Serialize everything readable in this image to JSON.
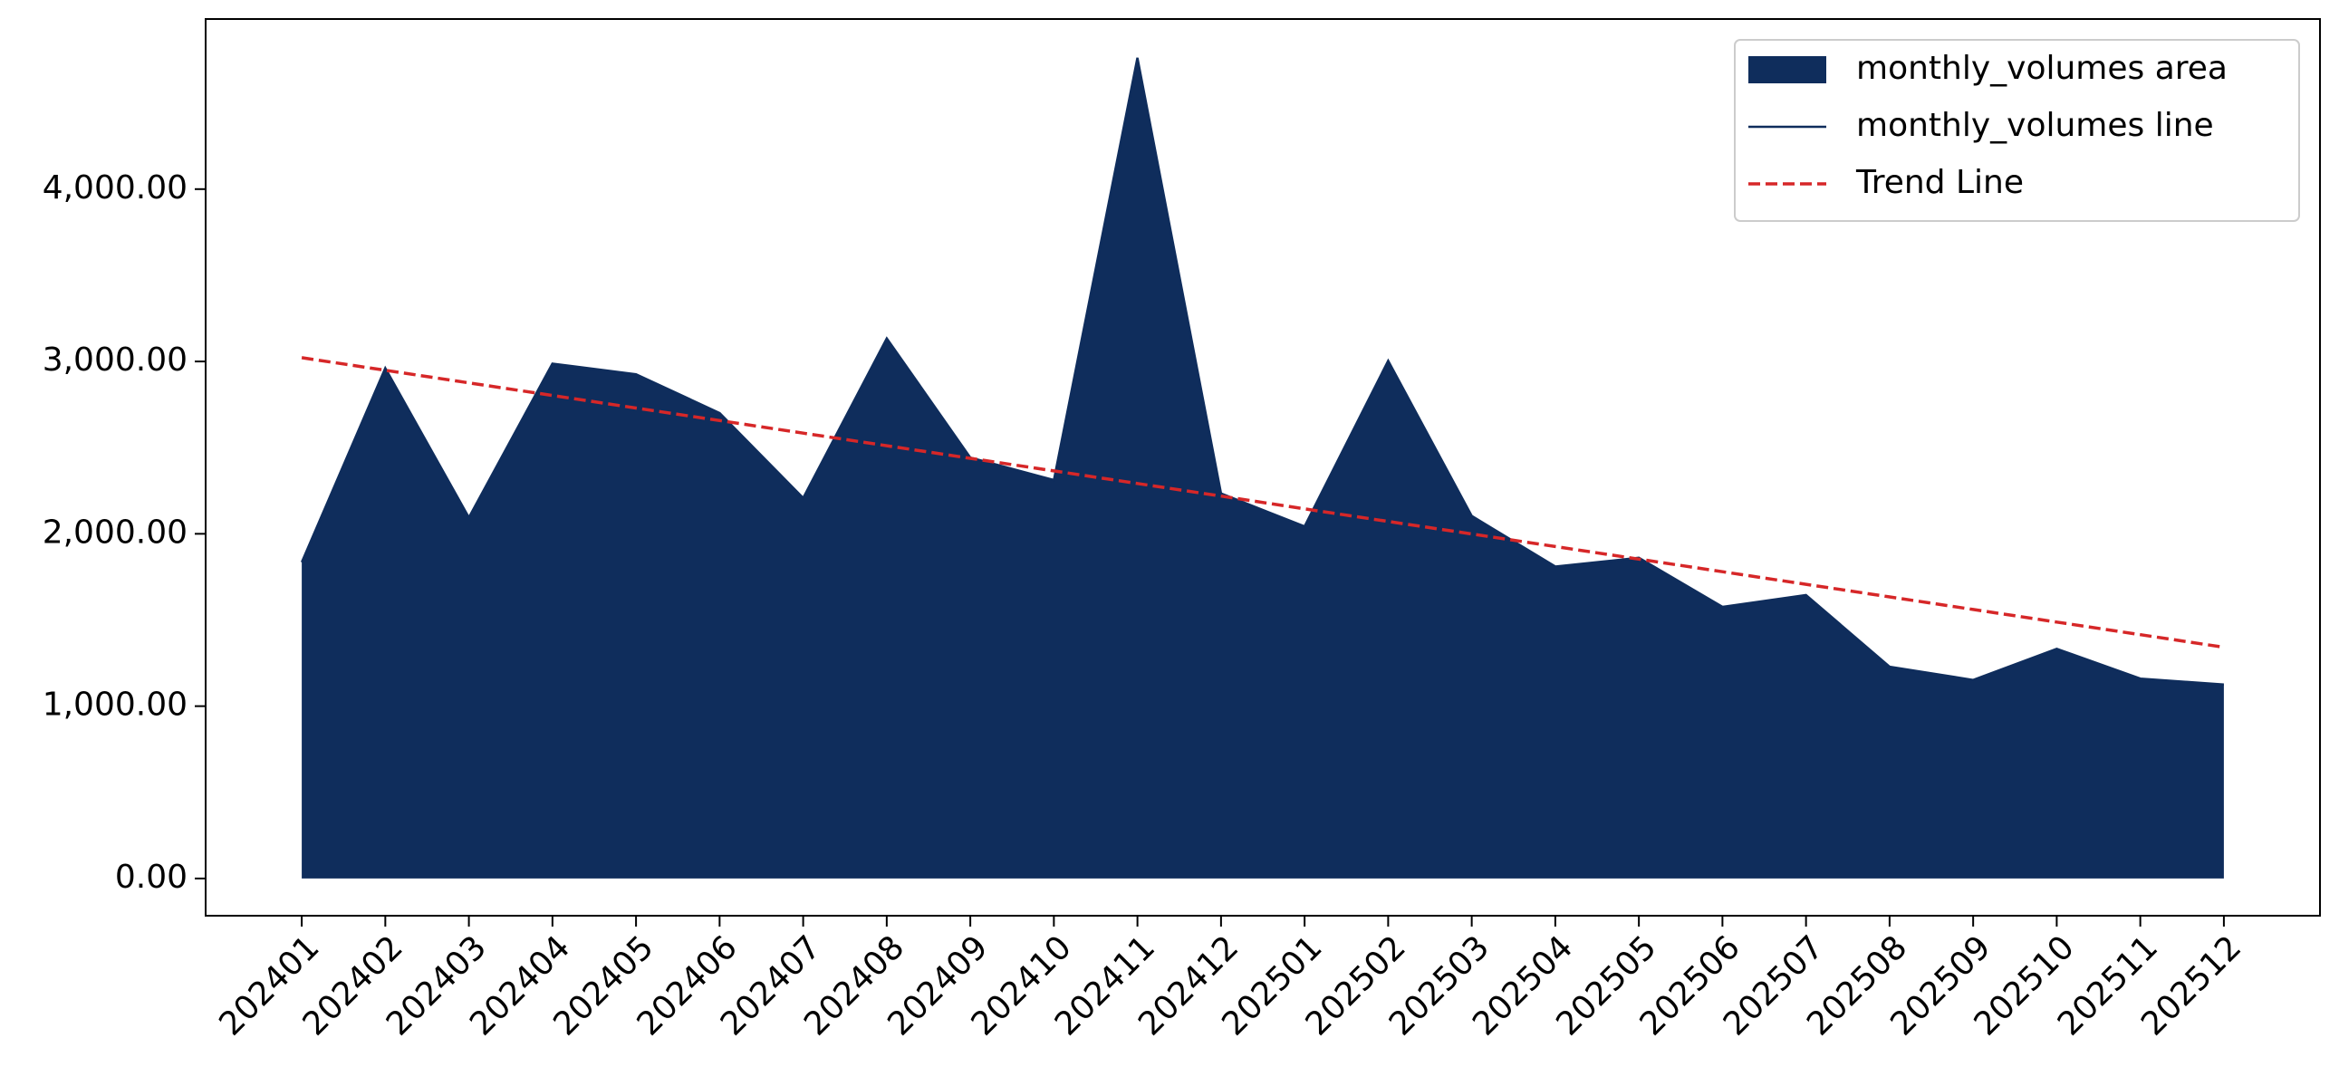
{
  "chart_data": {
    "type": "area",
    "categories": [
      "202401",
      "202402",
      "202403",
      "202404",
      "202405",
      "202406",
      "202407",
      "202408",
      "202409",
      "202410",
      "202411",
      "202412",
      "202501",
      "202502",
      "202503",
      "202504",
      "202505",
      "202506",
      "202507",
      "202508",
      "202509",
      "202510",
      "202511",
      "202512"
    ],
    "series": [
      {
        "name": "monthly_volumes area",
        "color": "#0f2d5c",
        "kind": "area",
        "values": [
          1835,
          2961,
          2095,
          2987,
          2926,
          2701,
          2208,
          3134,
          2442,
          2312,
          4762,
          2234,
          2043,
          3004,
          2104,
          1810,
          1861,
          1576,
          1645,
          1229,
          1152,
          1333,
          1160,
          1126
        ]
      },
      {
        "name": "monthly_volumes line",
        "color": "#0f2d5c",
        "kind": "line",
        "values": [
          1835,
          2961,
          2095,
          2987,
          2926,
          2701,
          2208,
          3134,
          2442,
          2312,
          4762,
          2234,
          2043,
          3004,
          2104,
          1810,
          1861,
          1576,
          1645,
          1229,
          1152,
          1333,
          1160,
          1126
        ]
      },
      {
        "name": "Trend Line",
        "color": "#d62728",
        "kind": "dashed",
        "values": [
          3022,
          2949,
          2876,
          2803,
          2730,
          2657,
          2584,
          2511,
          2438,
          2365,
          2292,
          2219,
          2145,
          2072,
          1999,
          1926,
          1853,
          1780,
          1707,
          1634,
          1561,
          1488,
          1415,
          1342
        ]
      }
    ],
    "ylim": [
      -216,
      4987
    ],
    "yticks": [
      {
        "value": 0,
        "label": "0.00"
      },
      {
        "value": 1000,
        "label": "1,000.00"
      },
      {
        "value": 2000,
        "label": "2,000.00"
      },
      {
        "value": 3000,
        "label": "3,000.00"
      },
      {
        "value": 4000,
        "label": "4,000.00"
      }
    ],
    "legend": "upper right",
    "grid": false
  }
}
